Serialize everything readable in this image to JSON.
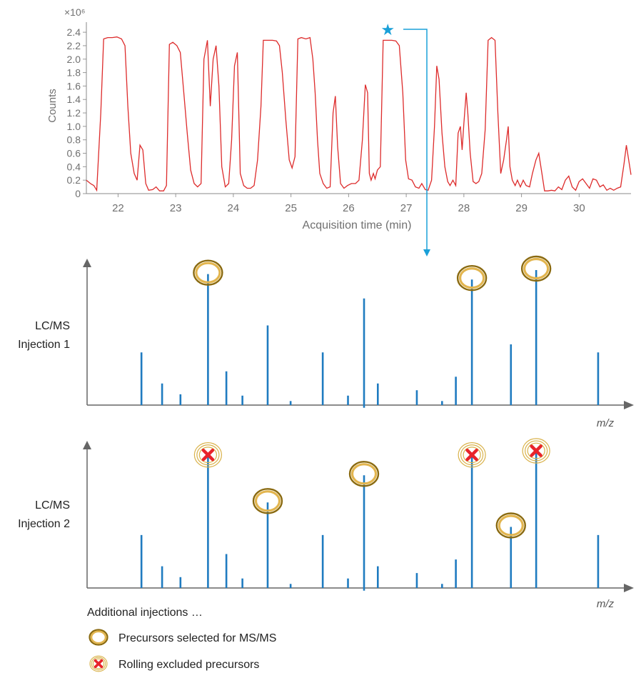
{
  "chart_data": [
    {
      "type": "line",
      "title": "",
      "xlabel": "Acquisition time (min)",
      "ylabel": "Counts",
      "y_multiplier_label": "×10⁶",
      "xlim": [
        21.45,
        30.9
      ],
      "ylim": [
        0,
        2.55
      ],
      "x_ticks": [
        "22",
        "23",
        "24",
        "25",
        "26",
        "27",
        "28",
        "29",
        "30"
      ],
      "y_ticks": [
        "0",
        "0.2",
        "0.4",
        "0.6",
        "0.8",
        "1.0",
        "1.2",
        "1.4",
        "1.6",
        "1.8",
        "2.0",
        "2.2",
        "2.4"
      ],
      "grid": false,
      "color": "#dd2b2b",
      "series": [
        {
          "points": [
            [
              21.45,
              0.2
            ],
            [
              21.52,
              0.15
            ],
            [
              21.58,
              0.12
            ],
            [
              21.63,
              0.05
            ],
            [
              21.7,
              1.2
            ],
            [
              21.75,
              2.3
            ],
            [
              21.82,
              2.32
            ],
            [
              21.9,
              2.32
            ],
            [
              21.98,
              2.33
            ],
            [
              22.06,
              2.3
            ],
            [
              22.12,
              2.2
            ],
            [
              22.17,
              1.3
            ],
            [
              22.22,
              0.6
            ],
            [
              22.28,
              0.3
            ],
            [
              22.33,
              0.2
            ],
            [
              22.38,
              0.72
            ],
            [
              22.43,
              0.65
            ],
            [
              22.48,
              0.15
            ],
            [
              22.53,
              0.05
            ],
            [
              22.6,
              0.06
            ],
            [
              22.66,
              0.1
            ],
            [
              22.72,
              0.04
            ],
            [
              22.79,
              0.04
            ],
            [
              22.84,
              0.12
            ],
            [
              22.89,
              2.22
            ],
            [
              22.95,
              2.25
            ],
            [
              23.02,
              2.2
            ],
            [
              23.08,
              2.1
            ],
            [
              23.14,
              1.5
            ],
            [
              23.2,
              0.9
            ],
            [
              23.26,
              0.35
            ],
            [
              23.32,
              0.15
            ],
            [
              23.38,
              0.1
            ],
            [
              23.44,
              0.15
            ],
            [
              23.49,
              2.0
            ],
            [
              23.55,
              2.28
            ],
            [
              23.6,
              1.3
            ],
            [
              23.65,
              2.0
            ],
            [
              23.7,
              2.2
            ],
            [
              23.75,
              1.6
            ],
            [
              23.8,
              0.4
            ],
            [
              23.86,
              0.1
            ],
            [
              23.92,
              0.15
            ],
            [
              23.97,
              0.8
            ],
            [
              24.02,
              1.9
            ],
            [
              24.07,
              2.1
            ],
            [
              24.12,
              0.3
            ],
            [
              24.18,
              0.12
            ],
            [
              24.24,
              0.08
            ],
            [
              24.3,
              0.08
            ],
            [
              24.36,
              0.12
            ],
            [
              24.42,
              0.5
            ],
            [
              24.48,
              1.3
            ],
            [
              24.52,
              2.28
            ],
            [
              24.6,
              2.28
            ],
            [
              24.68,
              2.28
            ],
            [
              24.75,
              2.27
            ],
            [
              24.8,
              2.2
            ],
            [
              24.85,
              1.8
            ],
            [
              24.91,
              1.1
            ],
            [
              24.97,
              0.5
            ],
            [
              25.02,
              0.38
            ],
            [
              25.07,
              0.55
            ],
            [
              25.12,
              2.3
            ],
            [
              25.18,
              2.32
            ],
            [
              25.26,
              2.3
            ],
            [
              25.33,
              2.32
            ],
            [
              25.38,
              2.0
            ],
            [
              25.42,
              1.5
            ],
            [
              25.46,
              0.8
            ],
            [
              25.5,
              0.3
            ],
            [
              25.56,
              0.15
            ],
            [
              25.62,
              0.08
            ],
            [
              25.68,
              0.1
            ],
            [
              25.73,
              1.2
            ],
            [
              25.77,
              1.45
            ],
            [
              25.81,
              0.7
            ],
            [
              25.86,
              0.15
            ],
            [
              25.92,
              0.08
            ],
            [
              25.98,
              0.12
            ],
            [
              26.05,
              0.15
            ],
            [
              26.12,
              0.15
            ],
            [
              26.18,
              0.2
            ],
            [
              26.24,
              0.8
            ],
            [
              26.29,
              1.62
            ],
            [
              26.33,
              1.5
            ],
            [
              26.36,
              0.3
            ],
            [
              26.39,
              0.2
            ],
            [
              26.43,
              0.3
            ],
            [
              26.46,
              0.22
            ],
            [
              26.5,
              0.35
            ],
            [
              26.55,
              0.4
            ],
            [
              26.6,
              2.28
            ],
            [
              26.67,
              2.28
            ],
            [
              26.75,
              2.28
            ],
            [
              26.82,
              2.27
            ],
            [
              26.88,
              2.2
            ],
            [
              26.94,
              1.5
            ],
            [
              26.99,
              0.5
            ],
            [
              27.04,
              0.22
            ],
            [
              27.1,
              0.2
            ],
            [
              27.16,
              0.1
            ],
            [
              27.22,
              0.08
            ],
            [
              27.27,
              0.15
            ],
            [
              27.33,
              0.06
            ],
            [
              27.38,
              0.05
            ],
            [
              27.44,
              0.2
            ],
            [
              27.49,
              1.0
            ],
            [
              27.53,
              1.9
            ],
            [
              27.57,
              1.7
            ],
            [
              27.62,
              0.9
            ],
            [
              27.67,
              0.4
            ],
            [
              27.72,
              0.18
            ],
            [
              27.76,
              0.12
            ],
            [
              27.81,
              0.2
            ],
            [
              27.86,
              0.12
            ],
            [
              27.9,
              0.9
            ],
            [
              27.94,
              1.0
            ],
            [
              27.97,
              0.65
            ],
            [
              28.0,
              1.05
            ],
            [
              28.04,
              1.5
            ],
            [
              28.07,
              1.18
            ],
            [
              28.11,
              0.6
            ],
            [
              28.16,
              0.18
            ],
            [
              28.21,
              0.15
            ],
            [
              28.26,
              0.18
            ],
            [
              28.31,
              0.3
            ],
            [
              28.37,
              0.95
            ],
            [
              28.42,
              2.28
            ],
            [
              28.48,
              2.32
            ],
            [
              28.54,
              2.28
            ],
            [
              28.59,
              1.2
            ],
            [
              28.64,
              0.3
            ],
            [
              28.69,
              0.5
            ],
            [
              28.74,
              0.8
            ],
            [
              28.77,
              1.0
            ],
            [
              28.8,
              0.4
            ],
            [
              28.84,
              0.2
            ],
            [
              28.89,
              0.12
            ],
            [
              28.93,
              0.2
            ],
            [
              28.98,
              0.1
            ],
            [
              29.03,
              0.2
            ],
            [
              29.08,
              0.12
            ],
            [
              29.14,
              0.1
            ],
            [
              29.19,
              0.3
            ],
            [
              29.25,
              0.5
            ],
            [
              29.3,
              0.6
            ],
            [
              29.35,
              0.32
            ],
            [
              29.4,
              0.04
            ],
            [
              29.46,
              0.04
            ],
            [
              29.52,
              0.05
            ],
            [
              29.58,
              0.04
            ],
            [
              29.64,
              0.1
            ],
            [
              29.7,
              0.06
            ],
            [
              29.76,
              0.2
            ],
            [
              29.82,
              0.26
            ],
            [
              29.88,
              0.1
            ],
            [
              29.94,
              0.05
            ],
            [
              30.0,
              0.18
            ],
            [
              30.06,
              0.22
            ],
            [
              30.12,
              0.15
            ],
            [
              30.18,
              0.08
            ],
            [
              30.24,
              0.22
            ],
            [
              30.3,
              0.2
            ],
            [
              30.36,
              0.1
            ],
            [
              30.42,
              0.13
            ],
            [
              30.48,
              0.05
            ],
            [
              30.54,
              0.08
            ],
            [
              30.6,
              0.05
            ],
            [
              30.66,
              0.08
            ],
            [
              30.72,
              0.1
            ],
            [
              30.78,
              0.45
            ],
            [
              30.82,
              0.72
            ],
            [
              30.85,
              0.55
            ],
            [
              30.9,
              0.28
            ]
          ]
        }
      ],
      "marker": {
        "icon": "star-icon",
        "x": 26.68,
        "color": "#1aa0d8"
      }
    },
    {
      "type": "bar",
      "title": "",
      "xlabel": "m/z",
      "group_label": [
        "LC/MS",
        "Injection 1"
      ],
      "grid": false,
      "bar_color": "#1f7bc0",
      "bars": [
        {
          "mz": 0.12,
          "h": 0.39
        },
        {
          "mz": 0.165,
          "h": 0.16
        },
        {
          "mz": 0.205,
          "h": 0.08
        },
        {
          "mz": 0.265,
          "h": 0.97,
          "status": "selected"
        },
        {
          "mz": 0.305,
          "h": 0.25
        },
        {
          "mz": 0.34,
          "h": 0.07
        },
        {
          "mz": 0.395,
          "h": 0.59
        },
        {
          "mz": 0.445,
          "h": 0.03
        },
        {
          "mz": 0.515,
          "h": 0.39
        },
        {
          "mz": 0.57,
          "h": 0.07
        },
        {
          "mz": 0.605,
          "h": 0.79,
          "below": 0.02
        },
        {
          "mz": 0.635,
          "h": 0.16
        },
        {
          "mz": 0.72,
          "h": 0.11
        },
        {
          "mz": 0.775,
          "h": 0.03
        },
        {
          "mz": 0.805,
          "h": 0.21
        },
        {
          "mz": 0.84,
          "h": 0.93,
          "status": "selected"
        },
        {
          "mz": 0.925,
          "h": 0.45
        },
        {
          "mz": 0.98,
          "h": 1.0,
          "status": "selected"
        },
        {
          "mz": 1.115,
          "h": 0.39
        }
      ]
    },
    {
      "type": "bar",
      "title": "",
      "xlabel": "m/z",
      "group_label": [
        "LC/MS",
        "Injection 2"
      ],
      "grid": false,
      "bar_color": "#1f7bc0",
      "bars": [
        {
          "mz": 0.12,
          "h": 0.39
        },
        {
          "mz": 0.165,
          "h": 0.16
        },
        {
          "mz": 0.205,
          "h": 0.08
        },
        {
          "mz": 0.265,
          "h": 0.97,
          "status": "excluded"
        },
        {
          "mz": 0.305,
          "h": 0.25
        },
        {
          "mz": 0.34,
          "h": 0.07
        },
        {
          "mz": 0.395,
          "h": 0.63,
          "status": "selected"
        },
        {
          "mz": 0.445,
          "h": 0.03
        },
        {
          "mz": 0.515,
          "h": 0.39
        },
        {
          "mz": 0.57,
          "h": 0.07
        },
        {
          "mz": 0.605,
          "h": 0.83,
          "below": 0.02,
          "status": "selected"
        },
        {
          "mz": 0.635,
          "h": 0.16
        },
        {
          "mz": 0.72,
          "h": 0.11
        },
        {
          "mz": 0.775,
          "h": 0.03
        },
        {
          "mz": 0.805,
          "h": 0.21
        },
        {
          "mz": 0.84,
          "h": 0.97,
          "status": "excluded"
        },
        {
          "mz": 0.925,
          "h": 0.45,
          "status": "selected"
        },
        {
          "mz": 0.98,
          "h": 1.0,
          "status": "excluded"
        },
        {
          "mz": 1.115,
          "h": 0.39
        }
      ]
    }
  ],
  "footer_text": "Additional injections …",
  "legend": {
    "selected_label": "Precursors selected for MS/MS",
    "excluded_label": "Rolling excluded precursors"
  },
  "colors": {
    "axis": "#606060",
    "tick_text": "#707070",
    "label_text": "#222222",
    "circle_ring": "#8a6a10",
    "circle_fill": "#e2b54f",
    "excluded_ring": "#d9b24a",
    "excluded_x": "#e8232b",
    "arrow": "#1aa0d8"
  }
}
